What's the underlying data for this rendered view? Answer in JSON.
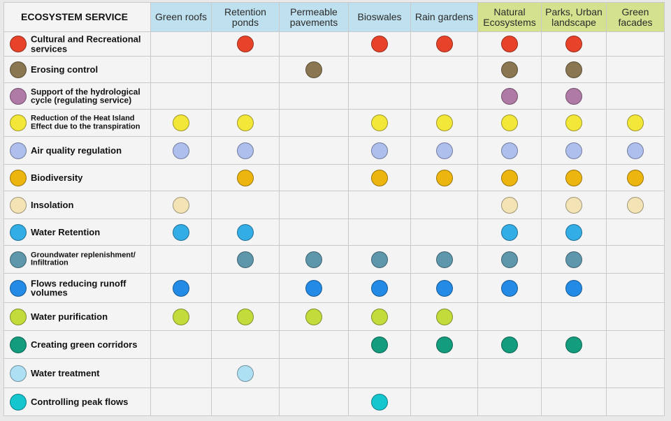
{
  "chart_data": {
    "type": "table",
    "corner_header": "ECOSYSTEM SERVICE",
    "columns": [
      {
        "label": "Green roofs",
        "group": "blue"
      },
      {
        "label": "Retention ponds",
        "group": "blue"
      },
      {
        "label": "Permeable pavements",
        "group": "blue"
      },
      {
        "label": "Bioswales",
        "group": "blue"
      },
      {
        "label": "Rain gardens",
        "group": "blue"
      },
      {
        "label": "Natural Ecosystems",
        "group": "green"
      },
      {
        "label": "Parks, Urban landscape",
        "group": "green"
      },
      {
        "label": "Green facades",
        "group": "green"
      }
    ],
    "rows": [
      {
        "service": "Cultural and Recreational services",
        "color": "#e8432a",
        "present": [
          0,
          1,
          0,
          1,
          1,
          1,
          1,
          0
        ]
      },
      {
        "service": "Erosing control",
        "color": "#8a7751",
        "present": [
          0,
          0,
          1,
          0,
          0,
          1,
          1,
          0
        ]
      },
      {
        "service": "Support of the hydrological cycle (regulating service)",
        "color": "#b07aa6",
        "present": [
          0,
          0,
          0,
          0,
          0,
          1,
          1,
          0
        ]
      },
      {
        "service": "Reduction of the Heat Island Effect due to the transpiration",
        "color": "#f3e73a",
        "present": [
          1,
          1,
          0,
          1,
          1,
          1,
          1,
          1
        ]
      },
      {
        "service": "Air quality regulation",
        "color": "#aebfee",
        "present": [
          1,
          1,
          0,
          1,
          1,
          1,
          1,
          1
        ]
      },
      {
        "service": "Biodiversity",
        "color": "#edb60f",
        "present": [
          0,
          1,
          0,
          1,
          1,
          1,
          1,
          1
        ]
      },
      {
        "service": "Insolation",
        "color": "#f4e4b5",
        "present": [
          1,
          0,
          0,
          0,
          0,
          1,
          1,
          1
        ]
      },
      {
        "service": "Water Retention",
        "color": "#32ade6",
        "present": [
          1,
          1,
          0,
          0,
          0,
          1,
          1,
          0
        ]
      },
      {
        "service": "Groundwater replenishment/ Infiltration",
        "color": "#5e97ac",
        "present": [
          0,
          1,
          1,
          1,
          1,
          1,
          1,
          0
        ]
      },
      {
        "service": "Flows reducing runoff volumes",
        "color": "#238ae6",
        "present": [
          1,
          0,
          1,
          1,
          1,
          1,
          1,
          0
        ]
      },
      {
        "service": "Water purification",
        "color": "#c3dc3c",
        "present": [
          1,
          1,
          1,
          1,
          1,
          0,
          0,
          0
        ]
      },
      {
        "service": "Creating green corridors",
        "color": "#139c7e",
        "present": [
          0,
          0,
          0,
          1,
          1,
          1,
          1,
          0
        ]
      },
      {
        "service": "Water treatment",
        "color": "#aee0f3",
        "present": [
          0,
          1,
          0,
          0,
          0,
          0,
          0,
          0
        ]
      },
      {
        "service": "Controlling peak flows",
        "color": "#15c6cf",
        "present": [
          0,
          0,
          0,
          1,
          0,
          0,
          0,
          0
        ]
      }
    ]
  }
}
